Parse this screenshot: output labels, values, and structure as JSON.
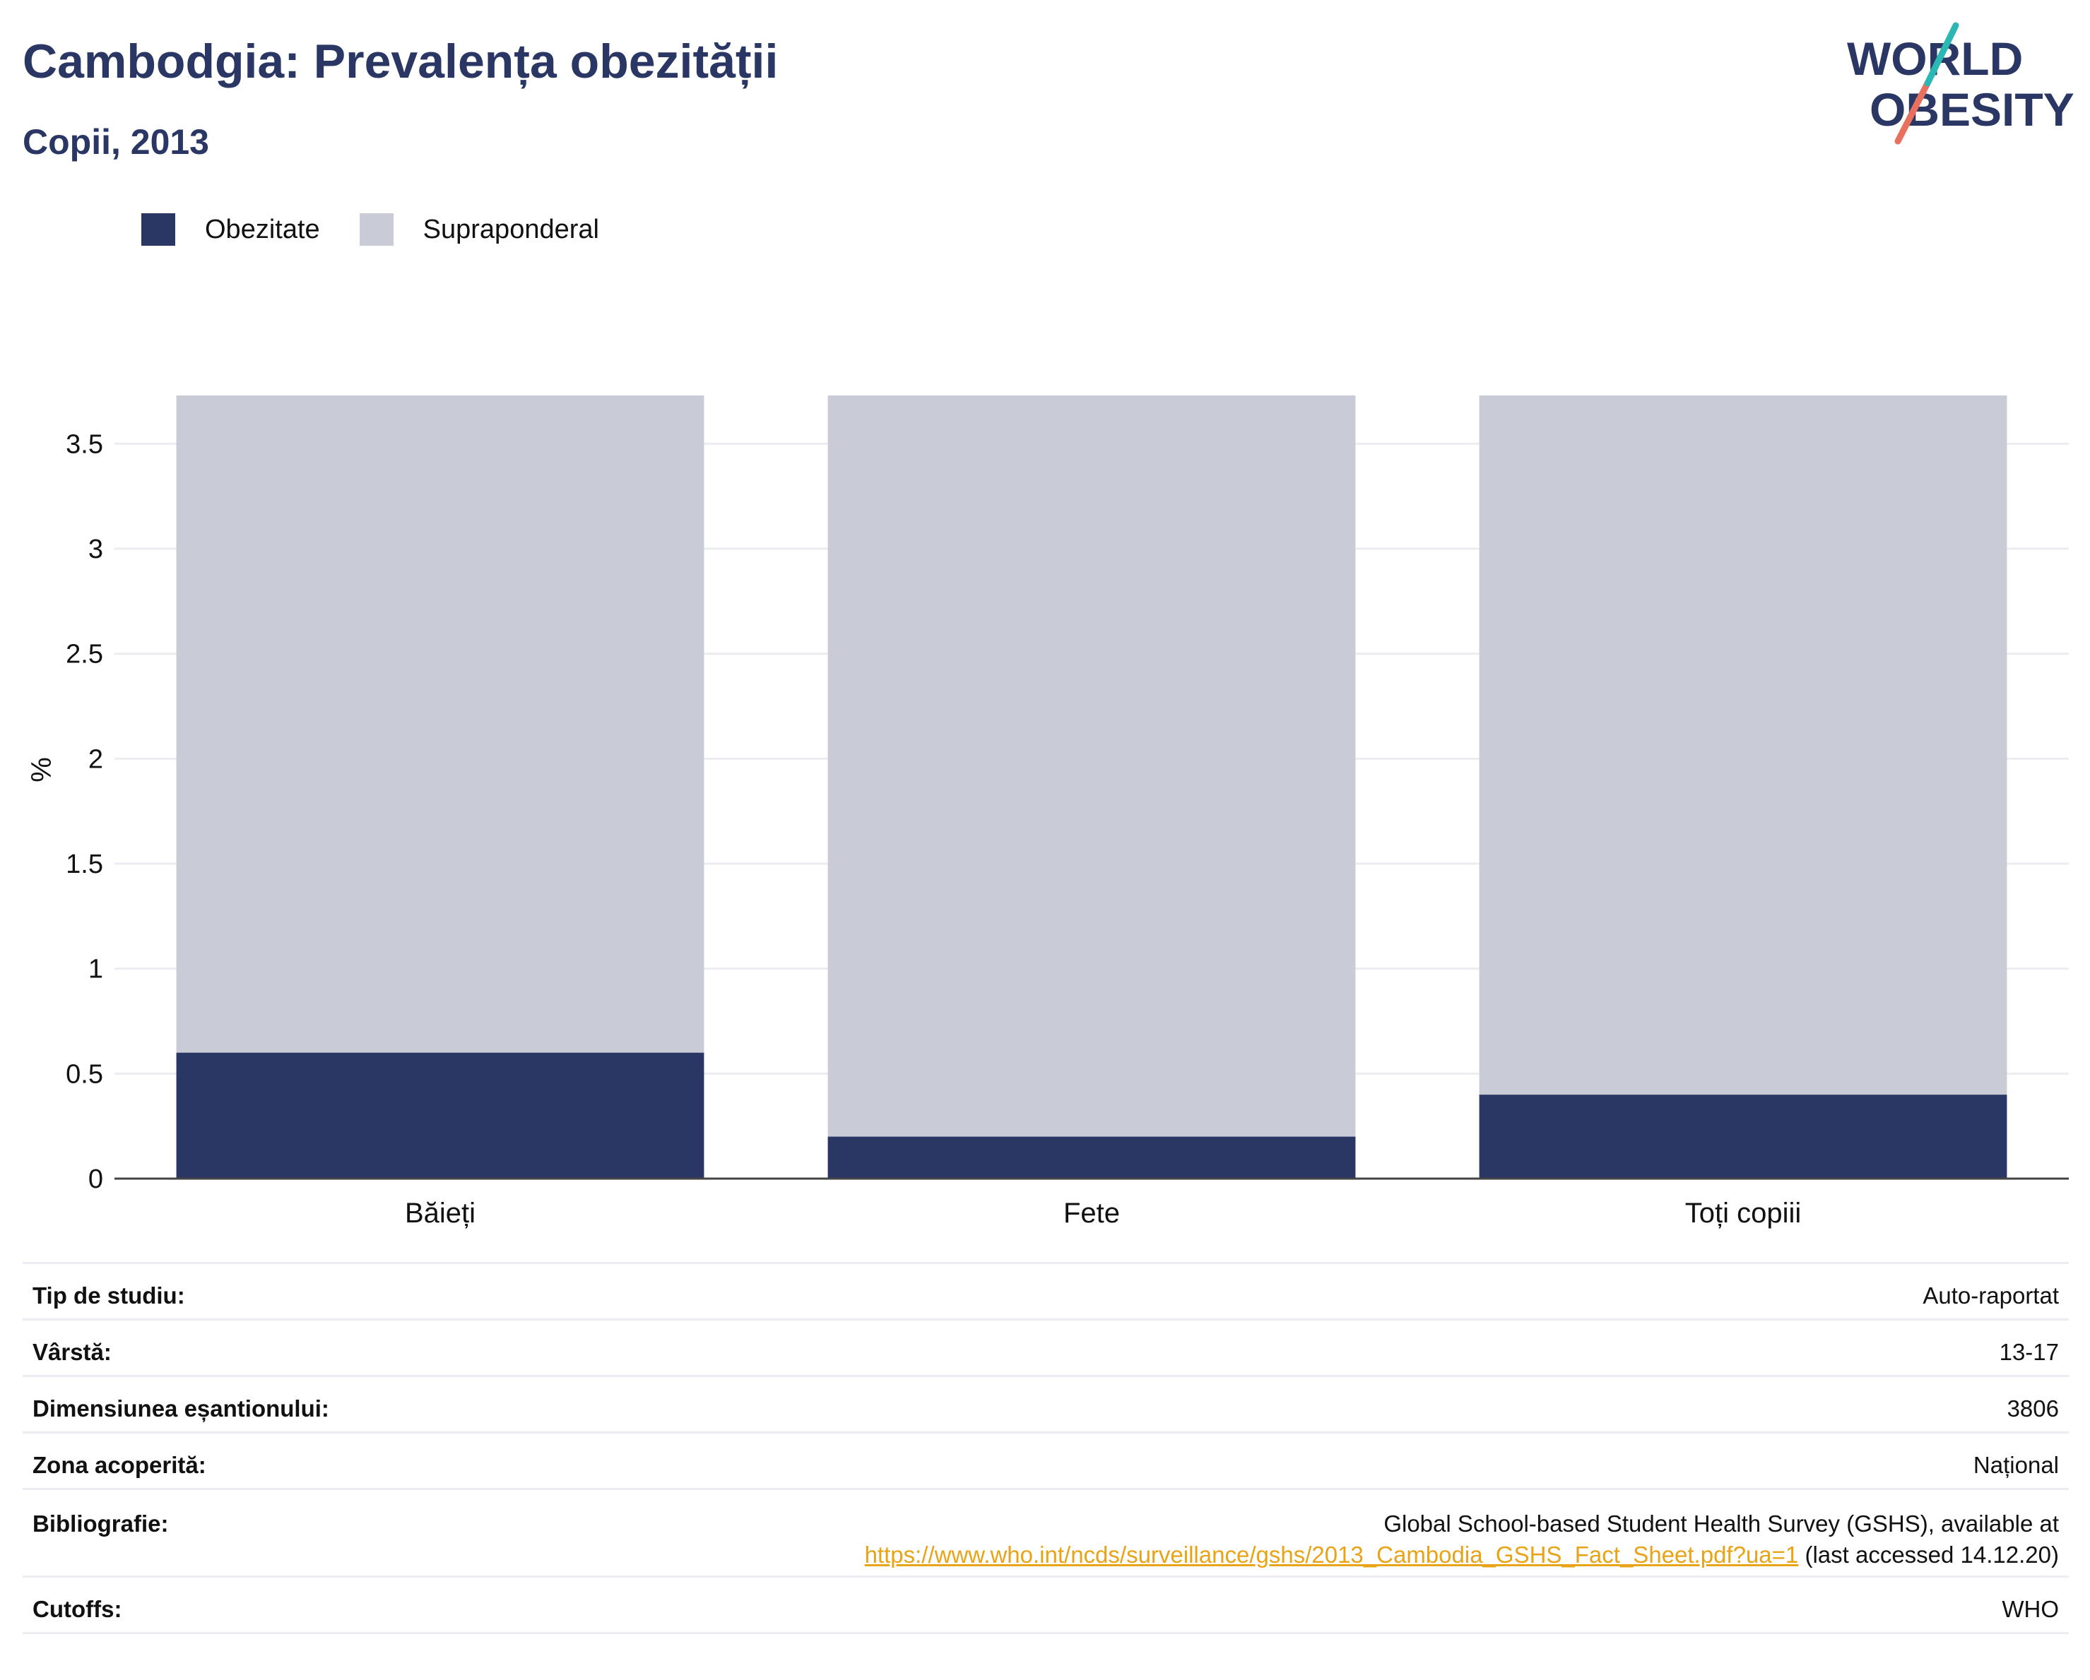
{
  "header": {
    "title": "Cambodgia: Prevalența obezității",
    "subtitle": "Copii, 2013"
  },
  "logo": {
    "line1": "WORLD",
    "line2": "OBESITY"
  },
  "legend": [
    {
      "label": "Obezitate",
      "color": "#2a3764"
    },
    {
      "label": "Supraponderal",
      "color": "#c9ccd7"
    }
  ],
  "chart_data": {
    "type": "bar",
    "stacked": true,
    "categories": [
      "Băieți",
      "Fete",
      "Toți copiii"
    ],
    "series": [
      {
        "name": "Obezitate",
        "values": [
          0.6,
          0.2,
          0.4
        ],
        "color": "#2a3764"
      },
      {
        "name": "Supraponderal",
        "values": [
          3.13,
          3.53,
          3.33
        ],
        "color": "#c9ccd7"
      }
    ],
    "ylabel": "%",
    "ylim": [
      0,
      3.73
    ],
    "yticks": [
      0,
      0.5,
      1,
      1.5,
      2,
      2.5,
      3,
      3.5
    ],
    "ytick_labels": [
      "0",
      "0.5",
      "1",
      "1.5",
      "2",
      "2.5",
      "3",
      "3.5"
    ],
    "grid": true,
    "legend_position": "top-left"
  },
  "info_table": [
    {
      "key": "Tip de studiu:",
      "value": "Auto-raportat"
    },
    {
      "key": "Vârstă:",
      "value": "13-17"
    },
    {
      "key": "Dimensiunea eșantionului:",
      "value": "3806"
    },
    {
      "key": "Zona acoperită:",
      "value": "Național"
    },
    {
      "key": "Bibliografie:",
      "value_line1": "Global School-based Student Health Survey (GSHS), available at",
      "link": "https://www.who.int/ncds/surveillance/gshs/2013_Cambodia_GSHS_Fact_Sheet.pdf?ua=1",
      "value_suffix": " (last accessed 14.12.20)"
    },
    {
      "key": "Cutoffs:",
      "value": "WHO"
    }
  ]
}
